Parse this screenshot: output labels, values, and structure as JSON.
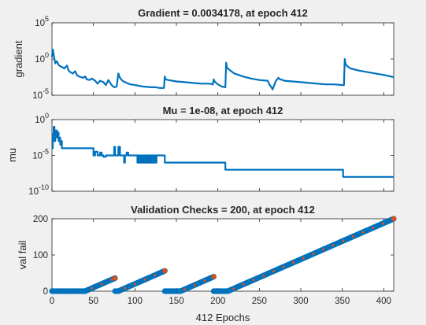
{
  "chart_data": [
    {
      "type": "line",
      "title": "Gradient = 0.0034178, at epoch 412",
      "ylabel": "gradient",
      "yscale": "log",
      "xlim": [
        0,
        412
      ],
      "ylim_exp": [
        -5,
        5
      ],
      "yticks": [
        {
          "exp": -5,
          "base": "10",
          "sup": "-5"
        },
        {
          "exp": 0,
          "base": "10",
          "sup": "0"
        },
        {
          "exp": 5,
          "base": "10",
          "sup": "5"
        }
      ],
      "line_color": "#0072bd",
      "series": [
        {
          "x": [
            0,
            1,
            2,
            3,
            4,
            5,
            6,
            8,
            10,
            12,
            15,
            18,
            20,
            22,
            25,
            28,
            30,
            32,
            35,
            38,
            40,
            42,
            45,
            48,
            52,
            55,
            58,
            62,
            65,
            68,
            72,
            75,
            78,
            80,
            82,
            85,
            88,
            92,
            95,
            100,
            110,
            120,
            125,
            130,
            135,
            136,
            137,
            140,
            150,
            160,
            170,
            180,
            190,
            194,
            195,
            196,
            198,
            200,
            205,
            209,
            210,
            211,
            215,
            220,
            230,
            240,
            250,
            260,
            262,
            264,
            266,
            268,
            270,
            273,
            275,
            278,
            280,
            290,
            300,
            310,
            320,
            330,
            340,
            350,
            352,
            353,
            354,
            356,
            360,
            370,
            380,
            390,
            400,
            412
          ],
          "log10_y": [
            0.3,
            1.3,
            0.7,
            0.0,
            -0.6,
            -0.4,
            -0.3,
            -0.8,
            -1.0,
            -1.1,
            -1.3,
            -0.9,
            -1.6,
            -1.8,
            -2.0,
            -1.7,
            -2.2,
            -2.4,
            -2.5,
            -2.6,
            -2.4,
            -2.8,
            -2.9,
            -2.7,
            -3.0,
            -3.4,
            -3.0,
            -3.2,
            -3.6,
            -2.9,
            -3.6,
            -3.9,
            -3.8,
            -2.0,
            -2.6,
            -3.0,
            -3.2,
            -3.4,
            -3.5,
            -3.6,
            -3.8,
            -3.9,
            -3.9,
            -4.0,
            -4.0,
            -2.4,
            -2.8,
            -2.9,
            -3.1,
            -3.2,
            -3.3,
            -3.4,
            -3.4,
            -3.5,
            -2.8,
            -3.1,
            -3.3,
            -3.5,
            -3.8,
            -3.9,
            -0.5,
            -1.2,
            -1.6,
            -2.0,
            -2.4,
            -2.7,
            -2.9,
            -3.0,
            -3.5,
            -3.8,
            -4.2,
            -3.6,
            -3.0,
            -2.6,
            -2.8,
            -2.9,
            -3.0,
            -3.1,
            -3.2,
            -3.3,
            -3.4,
            -3.5,
            -3.5,
            -3.6,
            -3.6,
            0.0,
            -0.7,
            -1.0,
            -1.3,
            -1.6,
            -1.8,
            -2.0,
            -2.2,
            -2.5
          ]
        }
      ]
    },
    {
      "type": "line",
      "title": "Mu = 1e-08, at epoch 412",
      "ylabel": "mu",
      "yscale": "log",
      "xlim": [
        0,
        412
      ],
      "ylim_exp": [
        -10,
        0
      ],
      "yticks": [
        {
          "exp": -10,
          "base": "10",
          "sup": "-10"
        },
        {
          "exp": -5,
          "base": "10",
          "sup": "-5"
        },
        {
          "exp": 0,
          "base": "10",
          "sup": "0"
        }
      ],
      "line_color": "#0072bd",
      "series": [
        {
          "x": [
            0,
            1,
            1,
            2,
            2,
            3,
            3,
            4,
            4,
            5,
            5,
            6,
            6,
            7,
            7,
            8,
            8,
            9,
            9,
            10,
            10,
            11,
            11,
            12,
            12,
            50,
            50,
            52,
            52,
            55,
            55,
            58,
            58,
            60,
            60,
            62,
            62,
            65,
            65,
            75,
            75,
            76,
            76,
            80,
            80,
            82,
            82,
            87,
            87,
            88,
            88,
            90,
            90,
            92,
            92,
            103,
            103,
            104,
            104,
            105,
            105,
            106,
            106,
            107,
            107,
            108,
            108,
            109,
            109,
            110,
            110,
            111,
            111,
            112,
            112,
            113,
            113,
            114,
            114,
            115,
            115,
            116,
            116,
            117,
            117,
            118,
            118,
            119,
            119,
            120,
            120,
            121,
            121,
            122,
            122,
            123,
            123,
            124,
            124,
            125,
            125,
            126,
            126,
            136,
            136,
            209,
            209,
            351,
            351,
            412
          ],
          "log10_y": [
            -4,
            -4,
            -2,
            -2,
            -1,
            -1,
            -3,
            -3,
            -2,
            -2,
            -1.5,
            -1.5,
            -2.5,
            -2.5,
            -1.8,
            -1.8,
            -3,
            -3,
            -2.5,
            -2.5,
            -3.5,
            -3.5,
            -3,
            -3,
            -4,
            -4,
            -5,
            -5,
            -4.5,
            -4.5,
            -5,
            -5,
            -4.6,
            -4.6,
            -5,
            -5,
            -5.2,
            -5.2,
            -5,
            -5,
            -3.8,
            -3.8,
            -5,
            -5,
            -3.8,
            -3.8,
            -5,
            -5,
            -6,
            -6,
            -5,
            -5,
            -4.6,
            -4.6,
            -5,
            -5,
            -6,
            -6,
            -5,
            -5,
            -6,
            -6,
            -5,
            -5,
            -6,
            -6,
            -5,
            -5,
            -6,
            -6,
            -5,
            -5,
            -6,
            -6,
            -5,
            -5,
            -6,
            -6,
            -5,
            -5,
            -6,
            -6,
            -5,
            -5,
            -6,
            -6,
            -5,
            -5,
            -6,
            -6,
            -5,
            -5,
            -6,
            -6,
            -5,
            -5,
            -6,
            -6,
            -5,
            -5,
            -6,
            -6,
            -5,
            -5,
            -6,
            -6,
            -7,
            -7,
            -8,
            -8
          ]
        }
      ]
    },
    {
      "type": "scatter",
      "title": "Validation Checks = 200, at epoch 412",
      "ylabel": "val fail",
      "xlabel": "412 Epochs",
      "xlim": [
        0,
        412
      ],
      "ylim": [
        0,
        200
      ],
      "yticks": [
        0,
        100,
        200
      ],
      "xticks": [
        0,
        50,
        100,
        150,
        200,
        250,
        300,
        350,
        400
      ],
      "line_color": "#0072bd",
      "marker_color": "#d95319",
      "segments": [
        {
          "start": 0,
          "zero_until": 40,
          "end": 76
        },
        {
          "start": 76,
          "zero_until": 80,
          "end": 136
        },
        {
          "start": 136,
          "zero_until": 155,
          "end": 195
        },
        {
          "start": 195,
          "zero_until": 212,
          "end": 412
        }
      ]
    }
  ]
}
